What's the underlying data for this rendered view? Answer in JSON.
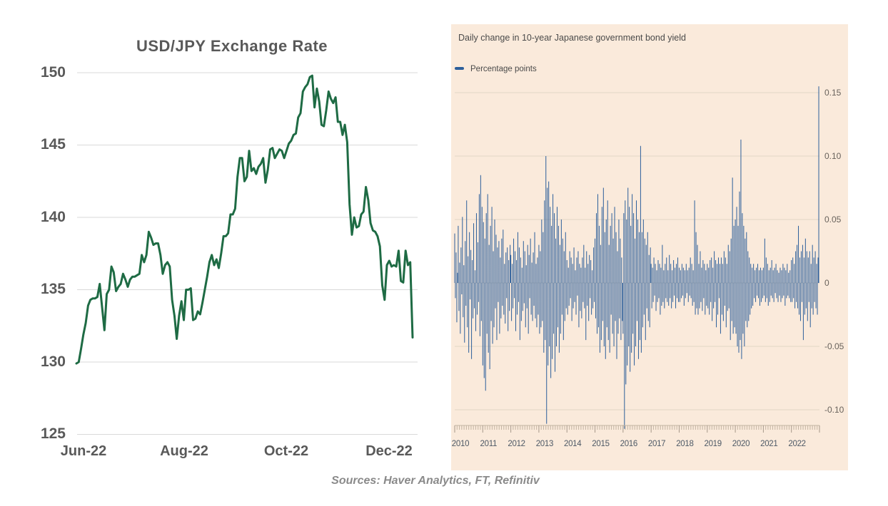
{
  "footer": {
    "sources": "Sources: Haver Analytics, FT, Refinitiv"
  },
  "colors": {
    "usdjpy_line": "#1e6b44",
    "usdjpy_grid": "#d9d9d9",
    "usdjpy_text": "#595959",
    "jgb_panel_bg": "#faeadb",
    "jgb_bar": "#2d5f9b",
    "jgb_grid": "#e3d5c4",
    "jgb_tick": "#c3b4a2",
    "jgb_year_tick": "#a6988a"
  },
  "chart_data": [
    {
      "type": "line",
      "title": "USD/JPY Exchange Rate",
      "series_name": "USD/JPY",
      "x_tick_labels": [
        "Jun-22",
        "Aug-22",
        "Oct-22",
        "Dec-22"
      ],
      "x_tick_indices": [
        0,
        43,
        88,
        131
      ],
      "y_tick_labels": [
        "150",
        "145",
        "140",
        "135",
        "130",
        "125"
      ],
      "y_tick_values": [
        150,
        145,
        140,
        135,
        130,
        125
      ],
      "ylim": [
        125,
        150
      ],
      "grid": true,
      "values": [
        129.9,
        130.0,
        130.9,
        131.9,
        132.7,
        133.9,
        134.3,
        134.4,
        134.4,
        134.5,
        135.4,
        133.8,
        132.2,
        134.7,
        135.0,
        136.6,
        136.2,
        134.9,
        135.2,
        135.4,
        136.1,
        135.7,
        135.2,
        135.7,
        135.9,
        135.9,
        136.0,
        136.1,
        137.4,
        136.9,
        137.4,
        139.0,
        138.6,
        138.1,
        138.2,
        138.2,
        137.4,
        136.1,
        136.7,
        136.9,
        136.6,
        134.3,
        133.2,
        131.6,
        133.2,
        134.2,
        132.9,
        135.0,
        135.0,
        135.1,
        132.9,
        133.0,
        133.5,
        133.3,
        134.1,
        135.0,
        135.9,
        136.9,
        137.4,
        136.7,
        137.1,
        136.5,
        137.5,
        138.7,
        138.7,
        138.9,
        140.2,
        140.2,
        140.6,
        142.8,
        144.1,
        144.1,
        142.5,
        142.8,
        144.6,
        143.2,
        143.4,
        143.0,
        143.5,
        143.7,
        144.1,
        142.4,
        143.3,
        144.7,
        144.8,
        144.1,
        144.4,
        144.7,
        144.6,
        144.1,
        144.6,
        145.1,
        145.3,
        145.7,
        145.8,
        146.9,
        147.2,
        148.7,
        149.0,
        149.2,
        149.7,
        149.8,
        147.6,
        148.9,
        148.0,
        146.4,
        146.3,
        147.4,
        148.7,
        148.2,
        147.9,
        148.3,
        146.6,
        146.6,
        145.7,
        146.4,
        145.2,
        140.9,
        138.8,
        140.0,
        139.3,
        139.4,
        140.2,
        140.4,
        142.1,
        141.2,
        139.6,
        139.1,
        139.0,
        138.7,
        138.0,
        135.3,
        134.3,
        136.7,
        137.0,
        136.6,
        136.7,
        136.6,
        137.7,
        135.6,
        135.5,
        137.7,
        136.7,
        136.9,
        131.7
      ]
    },
    {
      "type": "bar",
      "title": "Daily change in 10-year Japanese government bond yield",
      "legend": "Percentage points",
      "unit": "percentage points",
      "x_tick_labels": [
        "2010",
        "2011",
        "2012",
        "2013",
        "2014",
        "2015",
        "2016",
        "2017",
        "2018",
        "2019",
        "2020",
        "2021",
        "2022"
      ],
      "points_per_year": 40,
      "y_tick_labels": [
        "0.15",
        "0.10",
        "0.05",
        "0",
        "-0.05",
        "-0.10"
      ],
      "y_tick_values": [
        0.15,
        0.1,
        0.05,
        0,
        -0.05,
        -0.1
      ],
      "ylim": [
        -0.12,
        0.16
      ],
      "notable_points": {
        "max": 0.155,
        "max_year": 2022,
        "min": -0.115,
        "min_year": 2016,
        "deep_2013": -0.111
      },
      "values": [
        0.039,
        -0.012,
        0.024,
        -0.031,
        0.008,
        0.045,
        -0.022,
        0.016,
        -0.04,
        0.028,
        -0.009,
        0.052,
        -0.027,
        0.014,
        -0.047,
        0.033,
        -0.018,
        0.065,
        -0.035,
        0.021,
        -0.055,
        0.04,
        -0.013,
        0.026,
        -0.06,
        0.018,
        -0.028,
        0.047,
        -0.02,
        0.01,
        -0.038,
        0.055,
        -0.025,
        0.032,
        -0.015,
        0.07,
        -0.042,
        0.085,
        -0.03,
        0.06,
        -0.065,
        0.048,
        -0.075,
        0.035,
        -0.085,
        0.055,
        -0.04,
        0.07,
        -0.055,
        0.03,
        -0.068,
        0.045,
        -0.03,
        0.06,
        -0.048,
        0.025,
        -0.035,
        0.05,
        -0.02,
        0.038,
        -0.045,
        0.028,
        -0.015,
        0.033,
        -0.04,
        0.02,
        -0.028,
        0.035,
        -0.018,
        0.042,
        -0.025,
        0.015,
        -0.032,
        0.024,
        -0.012,
        0.028,
        -0.038,
        0.018,
        -0.022,
        0.03,
        0.022,
        -0.03,
        0.015,
        -0.02,
        0.035,
        -0.012,
        0.025,
        -0.038,
        0.018,
        -0.025,
        0.04,
        -0.015,
        0.028,
        -0.045,
        0.02,
        -0.03,
        0.012,
        -0.022,
        0.033,
        -0.016,
        0.025,
        -0.035,
        0.014,
        -0.02,
        0.03,
        -0.04,
        0.022,
        -0.012,
        0.035,
        -0.025,
        0.016,
        -0.03,
        0.024,
        -0.018,
        0.04,
        -0.028,
        0.015,
        -0.035,
        0.02,
        -0.025,
        0.03,
        -0.04,
        0.025,
        -0.035,
        0.05,
        -0.03,
        0.04,
        -0.055,
        0.065,
        -0.045,
        0.1,
        -0.111,
        0.075,
        -0.065,
        0.08,
        -0.05,
        0.06,
        -0.075,
        0.045,
        -0.06,
        0.07,
        -0.04,
        0.055,
        -0.07,
        0.035,
        -0.05,
        0.06,
        -0.035,
        0.045,
        -0.055,
        0.03,
        -0.04,
        0.05,
        -0.025,
        0.035,
        -0.045,
        0.025,
        -0.03,
        0.04,
        -0.02,
        0.018,
        -0.025,
        0.012,
        -0.018,
        0.025,
        -0.012,
        0.02,
        -0.03,
        0.015,
        -0.02,
        0.028,
        -0.015,
        0.01,
        -0.025,
        0.02,
        -0.01,
        0.025,
        -0.035,
        0.015,
        -0.022,
        0.012,
        -0.028,
        0.02,
        -0.015,
        0.03,
        -0.02,
        0.012,
        -0.045,
        0.025,
        -0.018,
        0.015,
        -0.03,
        0.022,
        -0.012,
        0.018,
        -0.025,
        0.01,
        -0.02,
        0.028,
        -0.015,
        0.035,
        -0.028,
        0.055,
        -0.04,
        0.07,
        -0.035,
        0.045,
        -0.055,
        0.03,
        -0.045,
        0.06,
        -0.03,
        0.075,
        -0.05,
        0.04,
        -0.06,
        0.05,
        -0.035,
        0.065,
        -0.045,
        0.03,
        -0.055,
        0.045,
        -0.025,
        0.055,
        -0.04,
        0.035,
        -0.05,
        0.06,
        -0.03,
        0.04,
        -0.06,
        0.025,
        -0.04,
        0.05,
        -0.028,
        0.035,
        -0.045,
        0.02,
        -0.03,
        -0.04,
        0.055,
        -0.115,
        0.065,
        -0.08,
        0.05,
        -0.065,
        0.075,
        -0.05,
        0.06,
        -0.07,
        0.045,
        -0.055,
        0.07,
        -0.04,
        0.055,
        -0.065,
        0.035,
        -0.05,
        0.065,
        -0.03,
        0.05,
        -0.06,
        0.04,
        -0.045,
        0.108,
        -0.055,
        0.04,
        -0.035,
        0.05,
        -0.025,
        0.035,
        -0.045,
        0.03,
        -0.02,
        0.04,
        -0.03,
        0.022,
        -0.035,
        0.028,
        0.015,
        -0.02,
        0.012,
        -0.015,
        0.02,
        -0.01,
        0.015,
        -0.022,
        0.01,
        -0.015,
        0.018,
        -0.012,
        0.015,
        -0.025,
        0.012,
        -0.018,
        0.03,
        -0.015,
        0.01,
        -0.02,
        0.015,
        -0.012,
        0.02,
        -0.015,
        0.01,
        -0.018,
        0.022,
        -0.012,
        0.015,
        -0.02,
        0.01,
        -0.015,
        0.018,
        -0.01,
        0.012,
        -0.02,
        0.015,
        -0.012,
        0.02,
        -0.015,
        0.012,
        -0.015,
        0.01,
        -0.012,
        0.015,
        -0.01,
        0.012,
        -0.018,
        0.01,
        -0.012,
        0.015,
        -0.008,
        0.01,
        -0.015,
        0.012,
        -0.01,
        0.02,
        -0.012,
        0.015,
        -0.018,
        0.01,
        -0.015,
        0.065,
        -0.025,
        0.04,
        -0.02,
        0.03,
        -0.025,
        0.015,
        -0.02,
        0.025,
        -0.015,
        0.012,
        -0.022,
        0.018,
        -0.012,
        0.015,
        -0.025,
        0.01,
        -0.018,
        0.015,
        -0.02,
        0.012,
        -0.025,
        0.018,
        -0.015,
        0.02,
        -0.03,
        0.012,
        -0.02,
        0.025,
        -0.015,
        0.018,
        -0.035,
        0.015,
        -0.025,
        0.02,
        -0.012,
        0.015,
        -0.04,
        0.02,
        -0.025,
        0.015,
        -0.03,
        0.025,
        -0.018,
        0.02,
        -0.035,
        0.015,
        -0.022,
        0.03,
        -0.02,
        0.025,
        -0.045,
        0.035,
        -0.03,
        0.083,
        -0.04,
        0.045,
        -0.035,
        0.05,
        -0.04,
        0.06,
        -0.05,
        0.045,
        -0.055,
        0.072,
        -0.045,
        0.113,
        -0.06,
        0.055,
        -0.04,
        0.045,
        -0.05,
        0.035,
        -0.03,
        0.04,
        -0.035,
        0.025,
        -0.03,
        0.02,
        -0.025,
        0.015,
        -0.02,
        0.012,
        -0.018,
        0.015,
        -0.012,
        0.01,
        -0.015,
        0.012,
        -0.01,
        0.015,
        -0.012,
        0.01,
        -0.018,
        0.012,
        -0.015,
        0.01,
        -0.012,
        0.012,
        -0.01,
        0.035,
        -0.015,
        0.02,
        -0.012,
        0.015,
        -0.018,
        0.01,
        -0.015,
        0.012,
        -0.01,
        0.018,
        -0.012,
        0.01,
        -0.015,
        0.012,
        -0.008,
        0.015,
        -0.012,
        0.01,
        -0.015,
        0.008,
        -0.01,
        0.012,
        -0.015,
        0.01,
        -0.012,
        0.015,
        -0.01,
        0.012,
        -0.018,
        0.01,
        -0.012,
        0.015,
        -0.01,
        0.008,
        -0.012,
        0.01,
        -0.015,
        0.018,
        -0.015,
        0.02,
        -0.012,
        0.015,
        -0.02,
        0.025,
        -0.015,
        0.03,
        -0.02,
        0.045,
        -0.025,
        0.02,
        -0.03,
        0.025,
        -0.015,
        0.03,
        -0.045,
        0.02,
        -0.025,
        0.035,
        -0.02,
        0.025,
        -0.03,
        0.02,
        -0.015,
        0.025,
        -0.035,
        0.015,
        -0.02,
        0.03,
        -0.025,
        0.02,
        -0.015,
        0.025,
        -0.02,
        0.015,
        -0.025,
        0.02,
        0.155
      ]
    }
  ]
}
